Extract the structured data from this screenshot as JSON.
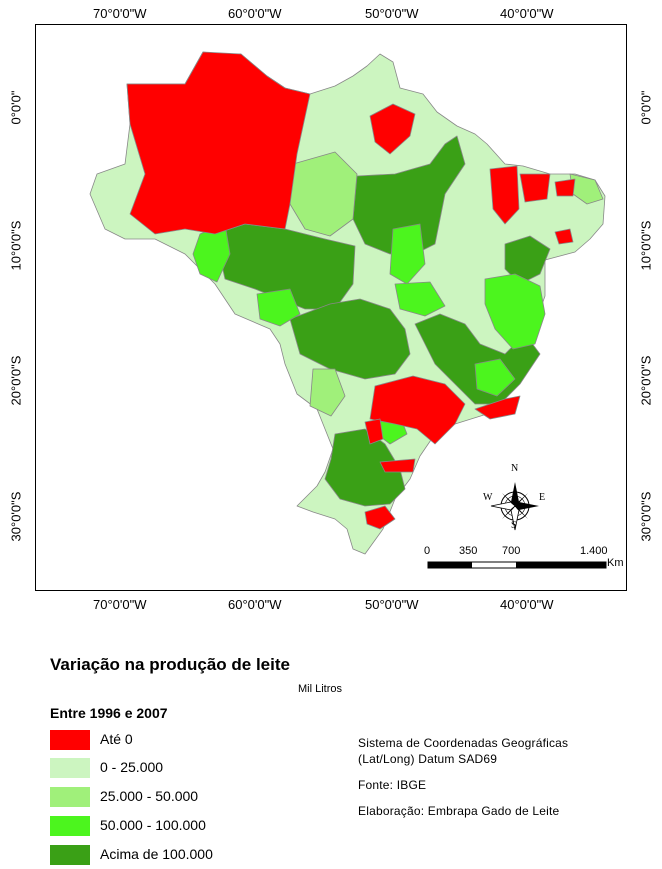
{
  "map": {
    "longitude_labels": [
      "70°0'0\"W",
      "60°0'0\"W",
      "50°0'0\"W",
      "40°0'0\"W"
    ],
    "latitude_labels": [
      "0°0'0\"",
      "10°0'0\"S",
      "20°0'0\"S",
      "30°0'0\"S"
    ],
    "compass": {
      "n": "N",
      "s": "S",
      "e": "E",
      "w": "W"
    },
    "scale_bar": {
      "ticks": [
        "0",
        "350",
        "700",
        "1.400"
      ],
      "unit": "Km"
    }
  },
  "legend": {
    "title": "Variação na produção de leite",
    "unit": "Mil Litros",
    "period": "Entre 1996 e 2007",
    "classes": [
      {
        "label": "Até 0",
        "color": "#ff0000"
      },
      {
        "label": "0 - 25.000",
        "color": "#ccf5c0"
      },
      {
        "label": "25.000 - 50.000",
        "color": "#a0f07a"
      },
      {
        "label": "50.000 - 100.000",
        "color": "#4cf51e"
      },
      {
        "label": "Acima de 100.000",
        "color": "#3aa016"
      }
    ]
  },
  "info": {
    "coord_system_line1": "Sistema de Coordenadas Geográficas",
    "coord_system_line2": "(Lat/Long) Datum SAD69",
    "source": "Fonte: IBGE",
    "elaboration": "Elaboração: Embrapa Gado de Leite"
  }
}
